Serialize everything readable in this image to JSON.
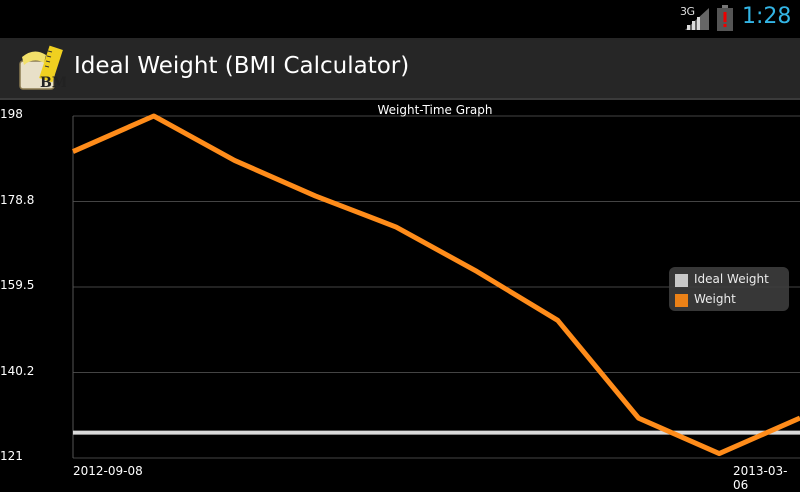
{
  "status": {
    "network": "3G",
    "time": "1:28",
    "icons": [
      "signal-icon",
      "battery-alert-icon"
    ]
  },
  "app": {
    "title": "Ideal Weight (BMI Calculator)",
    "icon": "bmi-tape-measure-icon",
    "icon_text": "BMI"
  },
  "colors": {
    "clock": "#33b5e5",
    "weight_series": "#ff8c1a",
    "ideal_series": "#d9d9d9",
    "action_bar": "#262626"
  },
  "chart_data": {
    "type": "line",
    "title": "Weight-Time Graph",
    "ylim": [
      121,
      198
    ],
    "yticks": [
      "198",
      "178.8",
      "159.5",
      "140.2",
      "121"
    ],
    "xticks": [
      "2012-09-08",
      "2013-03-06"
    ],
    "grid": true,
    "legend_position": "right",
    "series": [
      {
        "name": "Ideal Weight",
        "values": [
          126.7,
          126.7
        ]
      },
      {
        "name": "Weight",
        "values": [
          190,
          198,
          188,
          180,
          173,
          163,
          152,
          130,
          122,
          130
        ]
      }
    ]
  }
}
